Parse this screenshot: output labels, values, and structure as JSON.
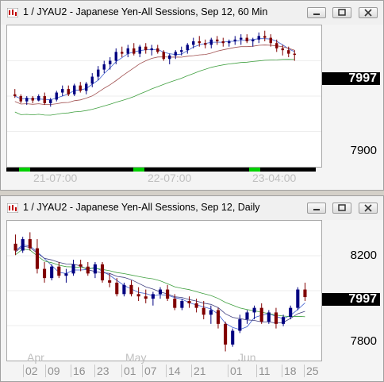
{
  "windows": [
    {
      "title": "1 / JYAU2 - Japanese Yen-All Sessions, Sep 12, 60 Min",
      "price_labels": [
        "7900"
      ],
      "last_price": "7997",
      "time_labels": [
        "21-07:00",
        "22-07:00",
        "23-04:00"
      ],
      "session_marker_color": "#00d000",
      "chart_data": {
        "type": "candlestick",
        "interval": "60 Min",
        "ylim": [
          7870,
          8030
        ],
        "colors": {
          "up": "#000080",
          "down": "#800000",
          "ma_fast": "#4060d0",
          "ma_mid": "#a05050",
          "ma_slow": "#40a040"
        },
        "candles": [
          [
            7952,
            7958,
            7948,
            7950
          ],
          [
            7950,
            7952,
            7942,
            7944
          ],
          [
            7944,
            7950,
            7940,
            7948
          ],
          [
            7948,
            7950,
            7942,
            7945
          ],
          [
            7945,
            7952,
            7944,
            7950
          ],
          [
            7950,
            7954,
            7940,
            7942
          ],
          [
            7942,
            7948,
            7938,
            7946
          ],
          [
            7946,
            7956,
            7944,
            7954
          ],
          [
            7954,
            7962,
            7950,
            7958
          ],
          [
            7958,
            7962,
            7950,
            7952
          ],
          [
            7952,
            7964,
            7950,
            7962
          ],
          [
            7962,
            7966,
            7954,
            7956
          ],
          [
            7956,
            7966,
            7952,
            7964
          ],
          [
            7964,
            7976,
            7960,
            7972
          ],
          [
            7972,
            7984,
            7968,
            7980
          ],
          [
            7980,
            7990,
            7976,
            7986
          ],
          [
            7986,
            7994,
            7980,
            7990
          ],
          [
            7990,
            8004,
            7986,
            8000
          ],
          [
            8000,
            8006,
            7994,
            7998
          ],
          [
            7998,
            8008,
            7994,
            8004
          ],
          [
            8004,
            8010,
            7996,
            7998
          ],
          [
            7998,
            8008,
            7994,
            8006
          ],
          [
            8006,
            8010,
            7998,
            8002
          ],
          [
            8002,
            8008,
            7996,
            8004
          ],
          [
            8004,
            8008,
            7998,
            8000
          ],
          [
            8000,
            8002,
            7990,
            7992
          ],
          [
            7992,
            7998,
            7986,
            7996
          ],
          [
            7996,
            8002,
            7992,
            8000
          ],
          [
            8000,
            8006,
            7996,
            8002
          ],
          [
            8002,
            8010,
            7998,
            8008
          ],
          [
            8008,
            8016,
            8004,
            8012
          ],
          [
            8012,
            8018,
            8006,
            8010
          ],
          [
            8010,
            8014,
            8004,
            8008
          ],
          [
            8008,
            8016,
            8004,
            8014
          ],
          [
            8014,
            8018,
            8008,
            8012
          ],
          [
            8012,
            8016,
            8006,
            8010
          ],
          [
            8010,
            8014,
            8006,
            8012
          ],
          [
            8012,
            8018,
            8008,
            8014
          ],
          [
            8014,
            8020,
            8008,
            8016
          ],
          [
            8016,
            8020,
            8010,
            8012
          ],
          [
            8012,
            8016,
            8006,
            8014
          ],
          [
            8014,
            8022,
            8010,
            8018
          ],
          [
            8018,
            8024,
            8012,
            8016
          ],
          [
            8016,
            8020,
            8006,
            8010
          ],
          [
            8010,
            8014,
            8000,
            8004
          ],
          [
            8004,
            8008,
            7996,
            8002
          ],
          [
            8002,
            8006,
            7994,
            7998
          ],
          [
            7998,
            8002,
            7990,
            7997
          ]
        ]
      }
    },
    {
      "title": "1 / JYAU2 - Japanese Yen-All Sessions, Sep 12, Daily",
      "price_labels": [
        "8200",
        "7800"
      ],
      "last_price": "7997",
      "month_labels": [
        "Apr",
        "May",
        "Jun"
      ],
      "day_labels": [
        "02",
        "09",
        "16",
        "23",
        "01",
        "07",
        "14",
        "21",
        "01",
        "11",
        "18",
        "25"
      ],
      "chart_data": {
        "type": "candlestick",
        "interval": "Daily",
        "ylim": [
          7720,
          8330
        ],
        "colors": {
          "up": "#000080",
          "down": "#800000",
          "ma_fast": "#4060d0",
          "ma_mid": "#404080",
          "ma_slow": "#40a040"
        },
        "candles": [
          [
            8230,
            8270,
            8180,
            8200
          ],
          [
            8200,
            8260,
            8190,
            8250
          ],
          [
            8250,
            8280,
            8200,
            8210
          ],
          [
            8210,
            8250,
            8100,
            8120
          ],
          [
            8120,
            8150,
            8060,
            8080
          ],
          [
            8080,
            8140,
            8070,
            8130
          ],
          [
            8130,
            8150,
            8080,
            8090
          ],
          [
            8090,
            8120,
            8060,
            8100
          ],
          [
            8100,
            8160,
            8090,
            8140
          ],
          [
            8140,
            8160,
            8110,
            8130
          ],
          [
            8130,
            8150,
            8090,
            8100
          ],
          [
            8100,
            8150,
            8080,
            8140
          ],
          [
            8140,
            8150,
            8060,
            8070
          ],
          [
            8070,
            8100,
            8040,
            8060
          ],
          [
            8060,
            8080,
            8000,
            8010
          ],
          [
            8010,
            8060,
            8000,
            8050
          ],
          [
            8050,
            8070,
            8000,
            8010
          ],
          [
            8010,
            8040,
            7980,
            8000
          ],
          [
            8000,
            8030,
            7970,
            7990
          ],
          [
            7990,
            8020,
            7960,
            8010
          ],
          [
            8010,
            8040,
            7990,
            8030
          ],
          [
            8030,
            8050,
            7980,
            7990
          ],
          [
            7990,
            8010,
            7940,
            7950
          ],
          [
            7950,
            7990,
            7940,
            7980
          ],
          [
            7980,
            8000,
            7950,
            7970
          ],
          [
            7970,
            7990,
            7930,
            7950
          ],
          [
            7950,
            7980,
            7900,
            7920
          ],
          [
            7920,
            7960,
            7880,
            7940
          ],
          [
            7940,
            7950,
            7860,
            7880
          ],
          [
            7880,
            7890,
            7760,
            7790
          ],
          [
            7790,
            7860,
            7780,
            7850
          ],
          [
            7850,
            7920,
            7840,
            7900
          ],
          [
            7900,
            7940,
            7880,
            7930
          ],
          [
            7930,
            7960,
            7900,
            7950
          ],
          [
            7950,
            7970,
            7880,
            7890
          ],
          [
            7890,
            7940,
            7880,
            7930
          ],
          [
            7930,
            7950,
            7860,
            7880
          ],
          [
            7880,
            7920,
            7870,
            7910
          ],
          [
            7910,
            7960,
            7900,
            7950
          ],
          [
            7950,
            8040,
            7940,
            8030
          ],
          [
            8030,
            8060,
            7980,
            7997
          ]
        ]
      }
    }
  ]
}
